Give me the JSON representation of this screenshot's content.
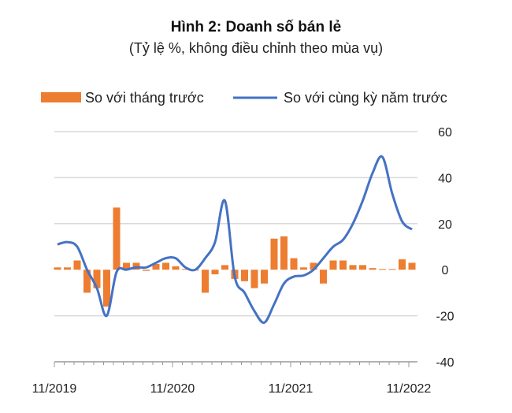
{
  "chart_data": {
    "type": "bar+line",
    "title": "Hình 2: Doanh số bán lẻ",
    "subtitle": "(Tỷ lệ %, không điều chỉnh theo mùa vụ)",
    "xlabel": "",
    "ylabel": "",
    "ylim": [
      -40,
      60
    ],
    "yticks": [
      60,
      40,
      20,
      0,
      -20,
      -40
    ],
    "xtick_labels": [
      "11/2019",
      "11/2020",
      "11/2021",
      "11/2022"
    ],
    "grid": true,
    "legend_position": "top",
    "x": [
      "11/2019",
      "12/2019",
      "1/2020",
      "2/2020",
      "3/2020",
      "4/2020",
      "5/2020",
      "6/2020",
      "7/2020",
      "8/2020",
      "9/2020",
      "10/2020",
      "11/2020",
      "12/2020",
      "1/2021",
      "2/2021",
      "3/2021",
      "4/2021",
      "5/2021",
      "6/2021",
      "7/2021",
      "8/2021",
      "9/2021",
      "10/2021",
      "11/2021",
      "12/2021",
      "1/2022",
      "2/2022",
      "3/2022",
      "4/2022",
      "5/2022",
      "6/2022",
      "7/2022",
      "8/2022",
      "9/2022",
      "10/2022",
      "11/2022"
    ],
    "series": [
      {
        "name": "So với tháng trước",
        "type": "bar",
        "color": "#ED7D31",
        "values": [
          1,
          1,
          4,
          -10,
          -8,
          -16,
          27,
          3,
          3,
          -0.5,
          2.5,
          3,
          1.5,
          0.3,
          0,
          -10,
          -2,
          2,
          -4,
          -5,
          -8,
          -6,
          13.5,
          14.5,
          5,
          1,
          3,
          -6,
          4,
          4,
          2,
          2,
          0.7,
          0.3,
          0.3,
          4.5,
          3
        ]
      },
      {
        "name": "So với cùng kỳ năm trước",
        "type": "line",
        "color": "#4472C4",
        "values": [
          11,
          12,
          10,
          0,
          -8,
          -20,
          -1,
          0,
          1,
          1,
          3,
          5,
          5,
          1,
          0,
          5,
          12,
          30,
          -3,
          -10,
          -18,
          -23,
          -15,
          -6,
          -3,
          -2.5,
          0,
          5,
          10,
          13,
          20,
          30,
          42,
          49,
          33,
          21,
          17.5
        ]
      }
    ]
  }
}
